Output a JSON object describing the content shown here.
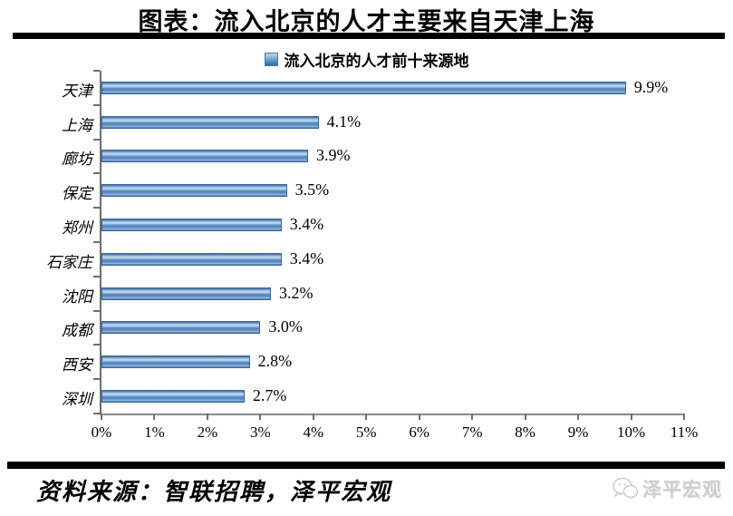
{
  "header": {
    "title": "图表：流入北京的人才主要来自天津上海"
  },
  "legend": {
    "label": "流入北京的人才前十来源地"
  },
  "chart_data": {
    "type": "bar",
    "orientation": "horizontal",
    "title": "流入北京的人才前十来源地",
    "categories": [
      "天津",
      "上海",
      "廊坊",
      "保定",
      "郑州",
      "石家庄",
      "沈阳",
      "成都",
      "西安",
      "深圳"
    ],
    "values": [
      9.9,
      4.1,
      3.9,
      3.5,
      3.4,
      3.4,
      3.2,
      3.0,
      2.8,
      2.7
    ],
    "value_labels": [
      "9.9%",
      "4.1%",
      "3.9%",
      "3.5%",
      "3.4%",
      "3.4%",
      "3.2%",
      "3.0%",
      "2.8%",
      "2.7%"
    ],
    "xlim": [
      0,
      11
    ],
    "x_tick_labels": [
      "0%",
      "1%",
      "2%",
      "3%",
      "4%",
      "5%",
      "6%",
      "7%",
      "8%",
      "9%",
      "10%",
      "11%"
    ],
    "xlabel": "",
    "ylabel": "",
    "grid": false,
    "legend_position": "top",
    "bar_color": "#5b8ac0"
  },
  "footer": {
    "source": "资料来源：智联招聘，泽平宏观",
    "brand": "泽平宏观"
  },
  "colors": {
    "bar": "#5b8ac0",
    "bar_border": "#3a669c",
    "axis": "#6e6e6e",
    "rule": "#000000",
    "brand_text": "#cdcdcd"
  }
}
